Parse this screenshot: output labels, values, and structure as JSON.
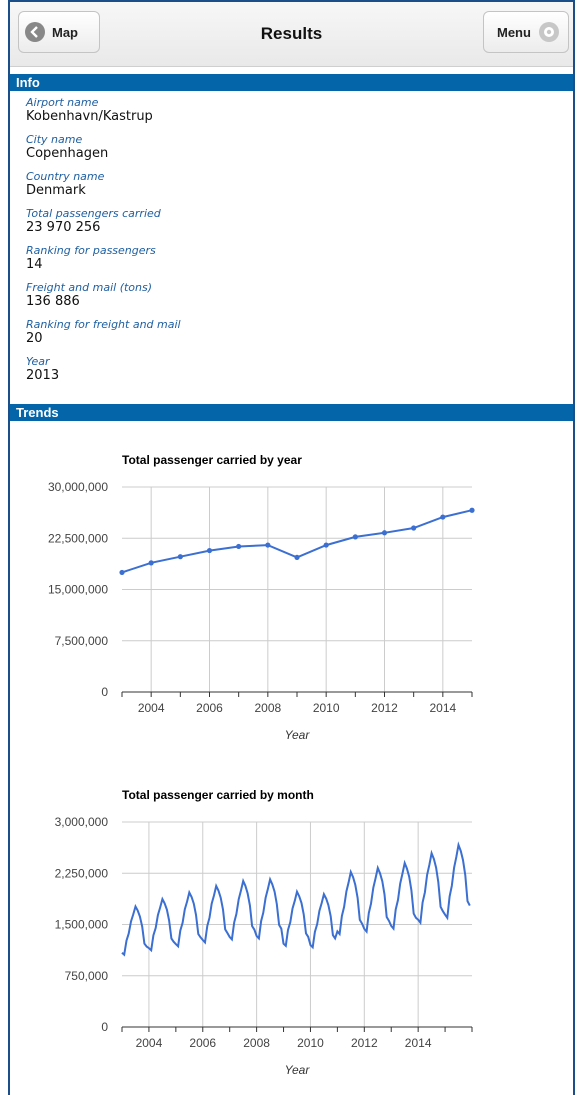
{
  "header": {
    "back_label": "Map",
    "title": "Results",
    "menu_label": "Menu"
  },
  "sections": {
    "info": "Info",
    "trends": "Trends"
  },
  "info_fields": [
    {
      "label": "Airport name",
      "value": "Kobenhavn/Kastrup"
    },
    {
      "label": "City name",
      "value": "Copenhagen"
    },
    {
      "label": "Country name",
      "value": "Denmark"
    },
    {
      "label": "Total passengers carried",
      "value": "23 970 256"
    },
    {
      "label": "Ranking for passengers",
      "value": "14"
    },
    {
      "label": "Freight and mail (tons)",
      "value": "136 886"
    },
    {
      "label": "Ranking for freight and mail",
      "value": "20"
    },
    {
      "label": "Year",
      "value": "2013"
    }
  ],
  "colors": {
    "accent": "#0466a8",
    "line": "#3b6fd1",
    "label": "#1f5fa0"
  },
  "icons": {
    "back": "chevron-left-icon",
    "menu": "gear-icon"
  },
  "chart_data": [
    {
      "type": "line",
      "title": "Total passenger carried by year",
      "xlabel": "Year",
      "ylabel": "",
      "x": [
        2003,
        2004,
        2005,
        2006,
        2007,
        2008,
        2009,
        2010,
        2011,
        2012,
        2013,
        2014,
        2015
      ],
      "values": [
        17500000,
        18900000,
        19800000,
        20700000,
        21300000,
        21500000,
        19700000,
        21500000,
        22700000,
        23300000,
        24000000,
        25600000,
        26600000
      ],
      "xlim": [
        2003,
        2015
      ],
      "ylim": [
        0,
        30000000
      ],
      "yticks": [
        "0",
        "7,500,000",
        "15,000,000",
        "22,500,000",
        "30,000,000"
      ],
      "xticks": [
        "2004",
        "2006",
        "2008",
        "2010",
        "2012",
        "2014"
      ],
      "grid": true
    },
    {
      "type": "line",
      "title": "Total passenger carried by month",
      "xlabel": "Year",
      "ylabel": "",
      "xlim": [
        2003,
        2016
      ],
      "ylim": [
        0,
        3000000
      ],
      "yticks": [
        "0",
        "750,000",
        "1,500,000",
        "2,250,000",
        "3,000,000"
      ],
      "xticks": [
        "2004",
        "2006",
        "2008",
        "2010",
        "2012",
        "2014"
      ],
      "grid": true,
      "seasonal_pattern": [
        0.74,
        0.72,
        0.86,
        0.93,
        1.05,
        1.12,
        1.2,
        1.16,
        1.1,
        1.0,
        0.83,
        0.8
      ],
      "annual_levels": [
        1470000,
        1560000,
        1640000,
        1720000,
        1780000,
        1800000,
        1650000,
        1620000,
        1890000,
        1940000,
        2000000,
        2120000,
        2220000
      ]
    }
  ]
}
